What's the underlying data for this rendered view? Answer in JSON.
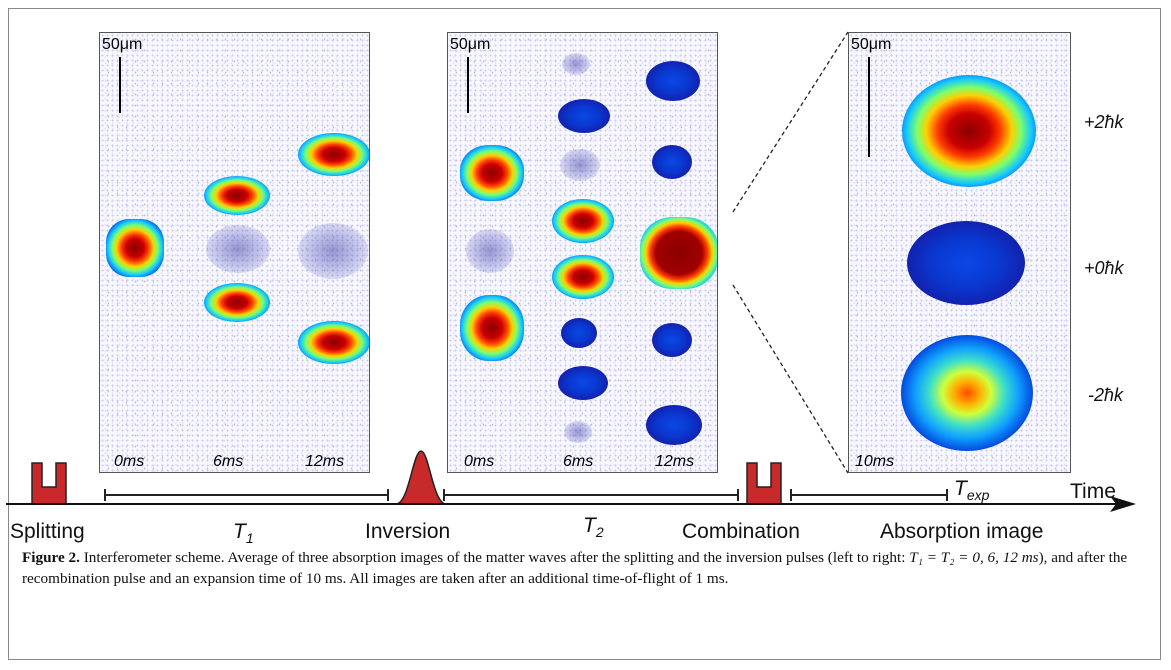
{
  "panels": {
    "left": {
      "scale": "50μm",
      "times": [
        "0ms",
        "6ms",
        "12ms"
      ]
    },
    "middle": {
      "scale": "50μm",
      "times": [
        "0ms",
        "6ms",
        "12ms"
      ]
    },
    "right": {
      "scale": "50μm",
      "time": "10ms"
    }
  },
  "momentum_labels": [
    "+2ħk",
    "+0ħk",
    "-2ħk"
  ],
  "timeline": {
    "splitting": "Splitting",
    "t1": "T",
    "t1_sub": "1",
    "inversion": "Inversion",
    "t2": "T",
    "t2_sub": "2",
    "combination": "Combination",
    "texp": "T",
    "texp_sub": "exp",
    "absorption": "Absorption image",
    "time": "Time"
  },
  "caption": {
    "label": "Figure 2.",
    "text_1": " Interferometer scheme. Average of three absorption images of the matter waves after the splitting and the inversion pulses (left to right: ",
    "eq": "T₁ = T₂ = 0, 6, 12 ms",
    "text_2": "), and after the recombination pulse and an expansion time of 10 ms. All images are taken after an additional time-of-flight of 1 ms."
  },
  "colors": {
    "pulse_fill": "#c8292a",
    "pulse_stroke": "#222222",
    "frame": "#8a8a8a"
  }
}
